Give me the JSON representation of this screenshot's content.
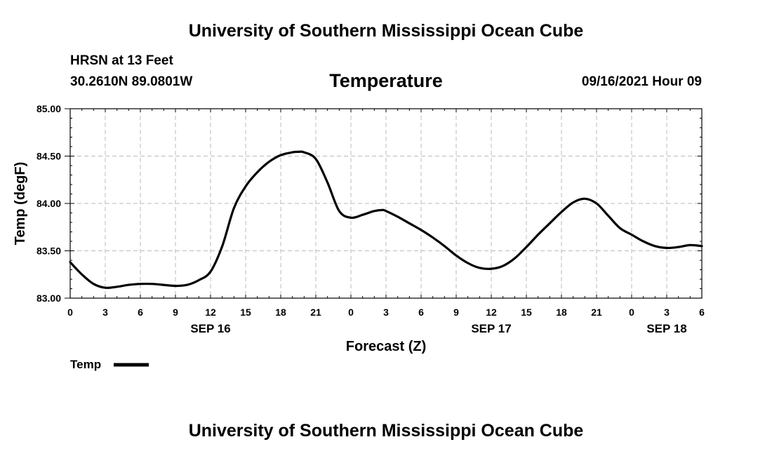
{
  "header": {
    "title_top": "University of Southern Mississippi Ocean Cube",
    "title_bottom": "University of Southern Mississippi Ocean Cube",
    "station": "HRSN at 13 Feet",
    "coords": "30.2610N  89.0801W",
    "timestamp": "09/16/2021 Hour 09"
  },
  "colors": {
    "line": "#000000",
    "grid": "#bbbbbb",
    "frame": "#000000"
  },
  "chart_data": {
    "type": "line",
    "title": "Temperature",
    "xlabel": "Forecast (Z)",
    "ylabel": "Temp (degF)",
    "xlim": [
      0,
      54
    ],
    "ylim": [
      83.0,
      85.0
    ],
    "x_ticks": [
      0,
      3,
      6,
      9,
      12,
      15,
      18,
      21,
      24,
      27,
      30,
      33,
      36,
      39,
      42,
      45,
      48,
      51,
      54
    ],
    "x_tick_labels": [
      "0",
      "3",
      "6",
      "9",
      "12",
      "15",
      "18",
      "21",
      "0",
      "3",
      "6",
      "9",
      "12",
      "15",
      "18",
      "21",
      "0",
      "3",
      "6"
    ],
    "y_ticks": [
      83.0,
      83.5,
      84.0,
      84.5,
      85.0
    ],
    "y_tick_labels": [
      "83.00",
      "83.50",
      "84.00",
      "84.50",
      "85.00"
    ],
    "date_labels": [
      {
        "x": 12,
        "label": "SEP 16"
      },
      {
        "x": 36,
        "label": "SEP 17"
      },
      {
        "x": 51,
        "label": "SEP 18"
      }
    ],
    "grid": true,
    "legend": {
      "position": "bottom-left",
      "entries": [
        "Temp"
      ]
    },
    "series": [
      {
        "name": "Temp",
        "x": [
          0,
          1,
          2,
          3,
          4,
          5,
          6,
          7,
          8,
          9,
          10,
          11,
          12,
          13,
          14,
          15,
          16,
          17,
          18,
          19,
          19.5,
          20,
          21,
          22,
          23,
          24,
          25,
          26,
          26.7,
          27,
          28,
          29,
          30,
          31,
          32,
          33,
          34,
          35,
          36,
          37,
          38,
          39,
          40,
          41,
          42,
          43,
          44,
          45,
          46,
          47,
          48,
          49,
          50,
          51,
          52,
          53,
          54
        ],
        "values": [
          83.38,
          83.25,
          83.15,
          83.11,
          83.12,
          83.14,
          83.15,
          83.15,
          83.14,
          83.13,
          83.14,
          83.19,
          83.28,
          83.55,
          83.95,
          84.18,
          84.33,
          84.44,
          84.51,
          84.54,
          84.545,
          84.54,
          84.47,
          84.22,
          83.92,
          83.85,
          83.88,
          83.92,
          83.93,
          83.92,
          83.86,
          83.79,
          83.72,
          83.64,
          83.55,
          83.45,
          83.37,
          83.32,
          83.31,
          83.34,
          83.42,
          83.54,
          83.67,
          83.79,
          83.91,
          84.01,
          84.05,
          84.0,
          83.87,
          83.74,
          83.67,
          83.6,
          83.55,
          83.53,
          83.54,
          83.56,
          83.55
        ]
      }
    ]
  }
}
